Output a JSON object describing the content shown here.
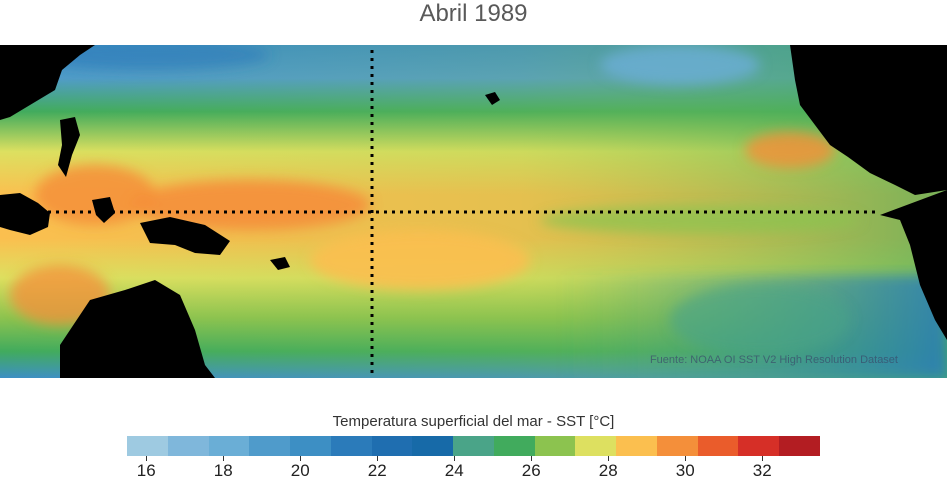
{
  "title": "Abril 1989",
  "map": {
    "source_text": "Fuente: NOAA OI SST V2 High Resolution Dataset",
    "reference_lines": [
      "equator",
      "date-line"
    ]
  },
  "legend": {
    "title": "Temperatura superficial del mar - SST  [°C]",
    "colors": [
      "#9ecae1",
      "#7fb7db",
      "#6aaed6",
      "#4f9bcb",
      "#3d8fc4",
      "#2b7bba",
      "#1f6eb0",
      "#176aa8",
      "#4aa488",
      "#41ab5d",
      "#8cc34f",
      "#dde060",
      "#fbbf4f",
      "#f48f3a",
      "#ea5c2b",
      "#d62f27",
      "#b31d22"
    ],
    "ticks": [
      "16",
      "18",
      "20",
      "22",
      "24",
      "26",
      "28",
      "30",
      "32"
    ],
    "tick_values": [
      16,
      18,
      20,
      22,
      24,
      26,
      28,
      30,
      32
    ],
    "min": 15.5,
    "max": 33.5
  }
}
